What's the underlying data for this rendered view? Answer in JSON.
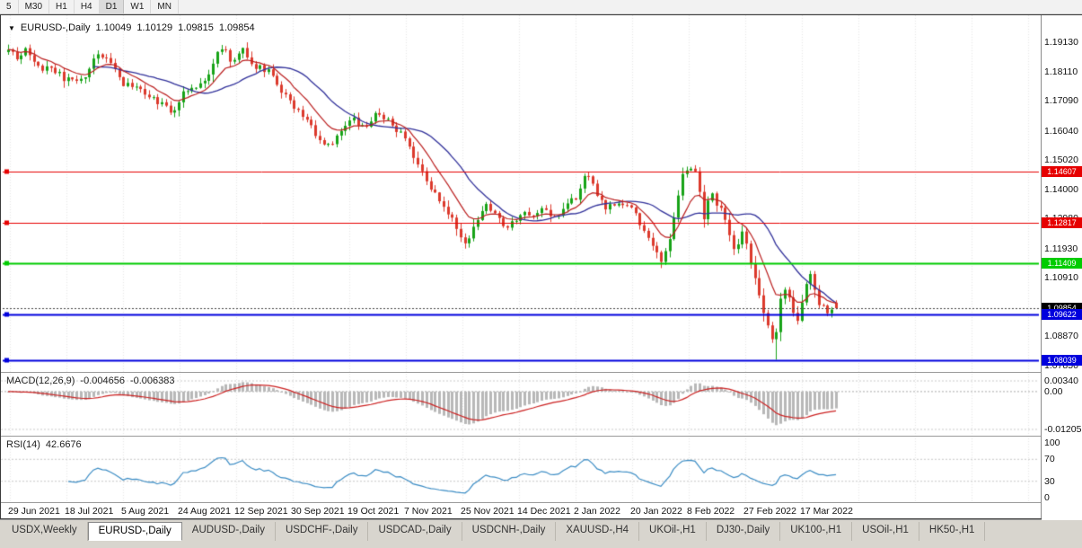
{
  "colors": {
    "up": "#17a317",
    "down": "#dc392c",
    "ma_fast": "#bb1f1f",
    "ma_slow": "#32329b",
    "macd_hist": "#b8b8b8",
    "macd_signal": "#cc2222",
    "rsi_line": "#3c8dc5",
    "grid": "#e7e7e7",
    "indicator_level": "#c8c8c8",
    "level_red": "#e60000",
    "level_green": "#00cc00",
    "level_blue": "#0000dd",
    "current_price": "#000000"
  },
  "toolbar": {
    "timeframes": [
      "5",
      "M30",
      "H1",
      "H4",
      "D1",
      "W1",
      "MN"
    ],
    "active": "D1"
  },
  "chart": {
    "symbol": "EURUSD-,Daily",
    "open": "1.10049",
    "high": "1.10129",
    "low": "1.09815",
    "close": "1.09854",
    "dropdown_icon": "▼",
    "price_ticks": [
      "1.19130",
      "1.18110",
      "1.17090",
      "1.16040",
      "1.15020",
      "1.14000",
      "1.12980",
      "1.11930",
      "1.10910",
      "1.09890",
      "1.08870",
      "1.07850"
    ],
    "levels": [
      {
        "price": 1.14607,
        "label": "1.14607",
        "color": "#e60000",
        "width": 1,
        "dashed": false
      },
      {
        "price": 1.12817,
        "label": "1.12817",
        "color": "#e60000",
        "width": 1,
        "dashed": false
      },
      {
        "price": 1.11409,
        "label": "1.11409",
        "color": "#00cc00",
        "width": 2,
        "dashed": false
      },
      {
        "price": 1.09854,
        "label": "1.09854",
        "color": "#000000",
        "width": 1,
        "dashed": true
      },
      {
        "price": 1.09622,
        "label": "1.09622",
        "color": "#0000dd",
        "width": 2,
        "dashed": false
      },
      {
        "price": 1.08039,
        "label": "1.08039",
        "color": "#0000dd",
        "width": 2,
        "dashed": false
      }
    ],
    "dates": [
      "29 Jun 2021",
      "18 Jul 2021",
      "5 Aug 2021",
      "24 Aug 2021",
      "12 Sep 2021",
      "30 Sep 2021",
      "19 Oct 2021",
      "7 Nov 2021",
      "25 Nov 2021",
      "14 Dec 2021",
      "2 Jan 2022",
      "20 Jan 2022",
      "8 Feb 2022",
      "27 Feb 2022",
      "17 Mar 2022"
    ]
  },
  "macd": {
    "label": "MACD(12,26,9)",
    "value_main": "-0.004656",
    "value_signal": "-0.006383",
    "ticks": [
      "0.00340",
      "0.00",
      "-0.01205"
    ]
  },
  "rsi": {
    "label": "RSI(14)",
    "value": "42.6676",
    "ticks": [
      "100",
      "70",
      "30",
      "0"
    ]
  },
  "tabs": {
    "items": [
      "USDX,Weekly",
      "EURUSD-,Daily",
      "AUDUSD-,Daily",
      "USDCHF-,Daily",
      "USDCAD-,Daily",
      "USDCNH-,Daily",
      "XAUUSD-,H4",
      "UKOil-,H1",
      "DJ30-,Daily",
      "UK100-,H1",
      "USOil-,H1",
      "HK50-,H1"
    ],
    "active_index": 1
  },
  "chart_data": {
    "type": "candlestick",
    "symbol": "EURUSD",
    "timeframe": "Daily",
    "visible_range": {
      "start": "29 Jun 2021",
      "end": "17 Mar 2022"
    },
    "ohlc_current": {
      "open": 1.10049,
      "high": 1.10129,
      "low": 1.09815,
      "close": 1.09854
    },
    "key_low": {
      "t": 0.9255,
      "price": 1.0806
    },
    "horizontal_levels": [
      1.14607,
      1.12817,
      1.11409,
      1.09622,
      1.08039
    ],
    "price_axis_range": {
      "top_tick": 1.1913,
      "bottom_tick": 1.0785
    },
    "candle_count": 195,
    "price_path_anchors": [
      [
        0.0,
        1.19
      ],
      [
        0.01,
        1.1862
      ],
      [
        0.022,
        1.1885
      ],
      [
        0.035,
        1.1822
      ],
      [
        0.05,
        1.1832
      ],
      [
        0.065,
        1.179
      ],
      [
        0.08,
        1.1772
      ],
      [
        0.095,
        1.1802
      ],
      [
        0.108,
        1.1868
      ],
      [
        0.122,
        1.1842
      ],
      [
        0.14,
        1.1765
      ],
      [
        0.16,
        1.1748
      ],
      [
        0.18,
        1.1702
      ],
      [
        0.197,
        1.1668
      ],
      [
        0.212,
        1.1736
      ],
      [
        0.228,
        1.1756
      ],
      [
        0.243,
        1.1802
      ],
      [
        0.257,
        1.1902
      ],
      [
        0.27,
        1.1848
      ],
      [
        0.283,
        1.1886
      ],
      [
        0.298,
        1.1832
      ],
      [
        0.315,
        1.1816
      ],
      [
        0.33,
        1.1742
      ],
      [
        0.344,
        1.1692
      ],
      [
        0.36,
        1.1642
      ],
      [
        0.375,
        1.1582
      ],
      [
        0.388,
        1.1548
      ],
      [
        0.402,
        1.1602
      ],
      [
        0.415,
        1.1646
      ],
      [
        0.43,
        1.1612
      ],
      [
        0.445,
        1.1666
      ],
      [
        0.458,
        1.1642
      ],
      [
        0.472,
        1.1602
      ],
      [
        0.484,
        1.1566
      ],
      [
        0.496,
        1.1472
      ],
      [
        0.51,
        1.1412
      ],
      [
        0.524,
        1.1342
      ],
      [
        0.538,
        1.1282
      ],
      [
        0.552,
        1.1206
      ],
      [
        0.565,
        1.1292
      ],
      [
        0.578,
        1.1342
      ],
      [
        0.592,
        1.1302
      ],
      [
        0.605,
        1.1262
      ],
      [
        0.618,
        1.1322
      ],
      [
        0.632,
        1.1292
      ],
      [
        0.645,
        1.1342
      ],
      [
        0.658,
        1.1302
      ],
      [
        0.672,
        1.1332
      ],
      [
        0.685,
        1.1372
      ],
      [
        0.698,
        1.1446
      ],
      [
        0.71,
        1.1396
      ],
      [
        0.722,
        1.1332
      ],
      [
        0.736,
        1.1352
      ],
      [
        0.754,
        1.1326
      ],
      [
        0.77,
        1.1252
      ],
      [
        0.79,
        1.1136
      ],
      [
        0.802,
        1.1262
      ],
      [
        0.814,
        1.1446
      ],
      [
        0.828,
        1.149
      ],
      [
        0.84,
        1.1302
      ],
      [
        0.848,
        1.1386
      ],
      [
        0.861,
        1.1332
      ],
      [
        0.876,
        1.1186
      ],
      [
        0.888,
        1.1256
      ],
      [
        0.9,
        1.1112
      ],
      [
        0.912,
        1.0978
      ],
      [
        0.925,
        1.0856
      ],
      [
        0.936,
        1.1076
      ],
      [
        0.946,
        1.1002
      ],
      [
        0.953,
        1.0922
      ],
      [
        0.961,
        1.1042
      ],
      [
        0.969,
        1.1096
      ],
      [
        0.978,
        1.1006
      ],
      [
        0.988,
        1.0972
      ],
      [
        1.0,
        1.09854
      ]
    ],
    "indicators": [
      {
        "name": "MACD",
        "params": [
          12,
          26,
          9
        ],
        "current_main": -0.004656,
        "current_signal": -0.006383,
        "axis_max": 0.0034,
        "axis_min": -0.01205,
        "style": "histogram+signal"
      },
      {
        "name": "RSI",
        "params": [
          14
        ],
        "current": 42.6676,
        "axis": [
          100,
          70,
          30,
          0
        ],
        "marked_levels": [
          70,
          30
        ]
      },
      {
        "name": "MA fast",
        "type": "ema",
        "period": 10,
        "color": "red"
      },
      {
        "name": "MA slow",
        "type": "sma",
        "period": 21,
        "color": "blue"
      }
    ]
  }
}
